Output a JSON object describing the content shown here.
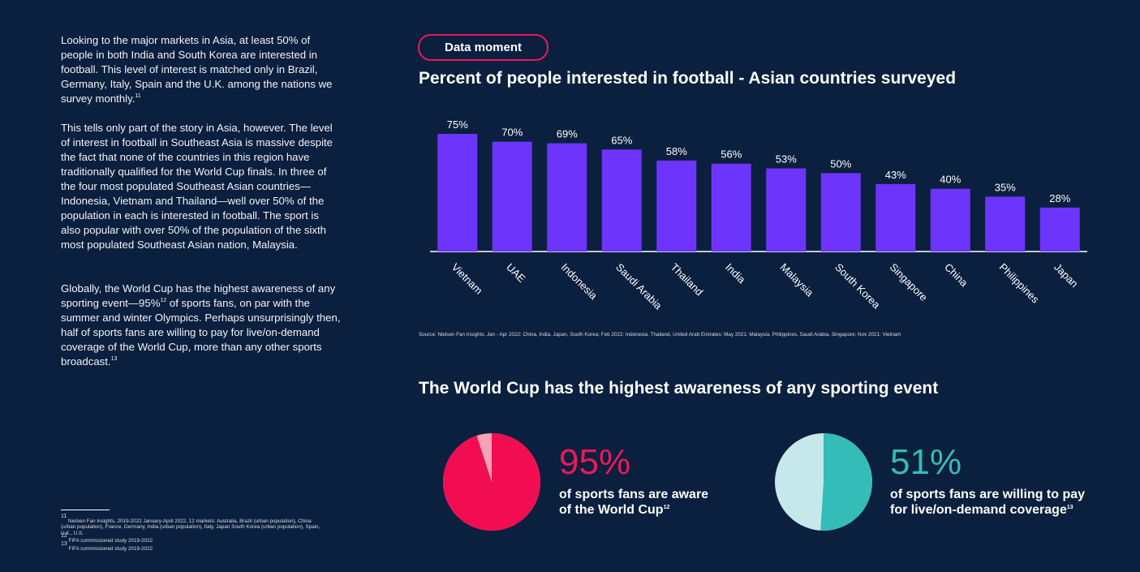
{
  "paragraphs": [
    [
      {
        "text": "Looking to the major markets in Asia, at least 50% of people in both India and South Korea are interested in football. This level of interest is matched only in Brazil, Germany, Italy, Spain and the U.K. among the nations we survey monthly."
      },
      {
        "sup": "11"
      }
    ],
    [
      {
        "text": "This tells only part of the story in Asia, however. The level of interest in football in Southeast Asia is massive despite the fact that none of the countries in this region have traditionally qualified for the World Cup finals. In three of the four most populated Southeast Asian countries—Indonesia, Vietnam and Thailand—well over 50% of the population in each is interested in football. The sport is also popular with over 50% of the population of the sixth most populated Southeast Asian nation, Malaysia."
      }
    ],
    [
      {
        "text": "Globally, the World Cup has the highest awareness of any sporting event—95%"
      },
      {
        "sup": "12"
      },
      {
        "text": " of sports fans, on par with the summer and winter Olympics. Perhaps unsurprisingly then, half of sports fans are willing to pay for live/on-demand coverage of the World Cup, more than any other sports broadcast."
      },
      {
        "sup": "13"
      }
    ]
  ],
  "footnotes": [
    [
      {
        "sup": "11"
      },
      {
        "text": " Nielsen Fan Insights, 2019-2022 January-April 2022, 12 markets: Australia, Brazil (urban population), China (urban population), France, Germany, India (urban population), Italy, Japan South Korea (urban population), Spain, U.K., U.S."
      }
    ],
    [
      {
        "sup": "12"
      },
      {
        "text": " FIFA commissioned study 2019-2022"
      }
    ],
    [
      {
        "sup": "13"
      },
      {
        "text": " FIFA commissioned study 2019-2022"
      }
    ]
  ],
  "badge": "Data moment",
  "section_title": "The World Cup has the highest awareness of any sporting event",
  "chart_data": [
    {
      "type": "bar",
      "title": "Percent of people interested in football - Asian countries surveyed",
      "categories": [
        "Vietnam",
        "UAE",
        "Indonesia",
        "Saudi Arabia",
        "Thailand",
        "India",
        "Malaysia",
        "South Korea",
        "Singapore",
        "China",
        "Philippines",
        "Japan"
      ],
      "values": [
        75,
        70,
        69,
        65,
        58,
        56,
        53,
        50,
        43,
        40,
        35,
        28
      ],
      "value_labels": [
        "75%",
        "70%",
        "69%",
        "65%",
        "58%",
        "56%",
        "53%",
        "50%",
        "43%",
        "40%",
        "35%",
        "28%"
      ],
      "color": "#6d35fb",
      "source": "Source: Nielsen Fan Insights, Jan - Apr 2022: China, India, Japan, South Korea; Feb 2022: Indonesia, Thailand, United Arab Emirates; May 2021: Malaysia, Philippines, Saudi Arabia, Singapore; Nov 2021: Vietnam"
    },
    {
      "type": "pie",
      "values": [
        95
      ],
      "value_labels": [
        "95%"
      ],
      "color": "#f20d52",
      "background_color": "#f7a3b7",
      "caption": [
        {
          "text": "of sports fans are aware of the World Cup"
        },
        {
          "sup": "12"
        }
      ]
    },
    {
      "type": "pie",
      "values": [
        51
      ],
      "value_labels": [
        "51%"
      ],
      "color": "#34bcb9",
      "background_color": "#c6e8eb",
      "caption": [
        {
          "text": "of sports fans are willing to pay for live/on-demand coverage"
        },
        {
          "sup": "13"
        }
      ]
    }
  ]
}
